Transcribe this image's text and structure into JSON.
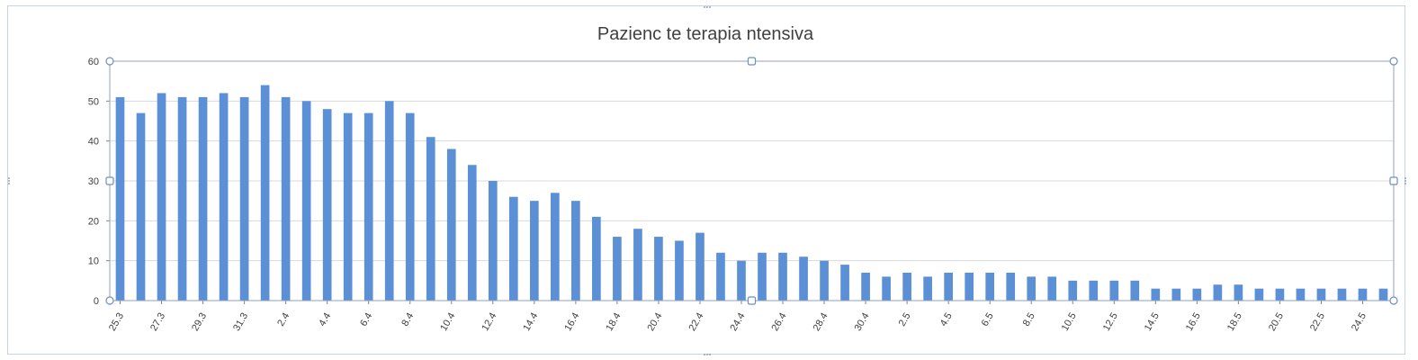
{
  "chart_data": {
    "type": "bar",
    "title": "Pazienc te terapia ntensiva",
    "xlabel": "",
    "ylabel": "",
    "ylim": [
      0,
      60
    ],
    "yticks": [
      0,
      10,
      20,
      30,
      40,
      50,
      60
    ],
    "grid": true,
    "legend": "none",
    "bar_color": "#5b8fd6",
    "categories": [
      "25.3",
      "26.3",
      "27.3",
      "28.3",
      "29.3",
      "30.3",
      "31.3",
      "1.4",
      "2.4",
      "3.4",
      "4.4",
      "5.4",
      "6.4",
      "7.4",
      "8.4",
      "9.4",
      "10.4",
      "11.4",
      "12.4",
      "13.4",
      "14.4",
      "15.4",
      "16.4",
      "17.4",
      "18.4",
      "19.4",
      "20.4",
      "21.4",
      "22.4",
      "23.4",
      "24.4",
      "25.4",
      "26.4",
      "27.4",
      "28.4",
      "29.4",
      "30.4",
      "1.5",
      "2.5",
      "3.5",
      "4.5",
      "5.5",
      "6.5",
      "7.5",
      "8.5",
      "9.5",
      "10.5",
      "11.5",
      "12.5",
      "13.5",
      "14.5",
      "15.5",
      "16.5",
      "17.5",
      "18.5",
      "19.5",
      "20.5",
      "21.5",
      "22.5",
      "23.5",
      "24.5",
      "25.5"
    ],
    "tick_labels": [
      "25.3",
      "27.3",
      "29.3",
      "31.3",
      "2.4",
      "4.4",
      "6.4",
      "8.4",
      "10.4",
      "12.4",
      "14.4",
      "16.4",
      "18.4",
      "20.4",
      "22.4",
      "24.4",
      "26.4",
      "28.4",
      "30.4",
      "2.5",
      "4.5",
      "6.5",
      "8.5",
      "10.5",
      "12.5",
      "14.5",
      "16.5",
      "18.5",
      "20.5",
      "22.5",
      "24.5"
    ],
    "values": [
      51,
      47,
      52,
      51,
      51,
      52,
      51,
      54,
      51,
      50,
      48,
      47,
      47,
      50,
      47,
      41,
      38,
      34,
      30,
      26,
      25,
      27,
      25,
      21,
      16,
      18,
      16,
      15,
      17,
      12,
      10,
      12,
      12,
      11,
      10,
      9,
      7,
      6,
      7,
      6,
      7,
      7,
      7,
      7,
      6,
      6,
      5,
      5,
      5,
      5,
      3,
      3,
      3,
      4,
      4,
      3,
      3,
      3,
      3,
      3,
      3,
      3
    ]
  }
}
